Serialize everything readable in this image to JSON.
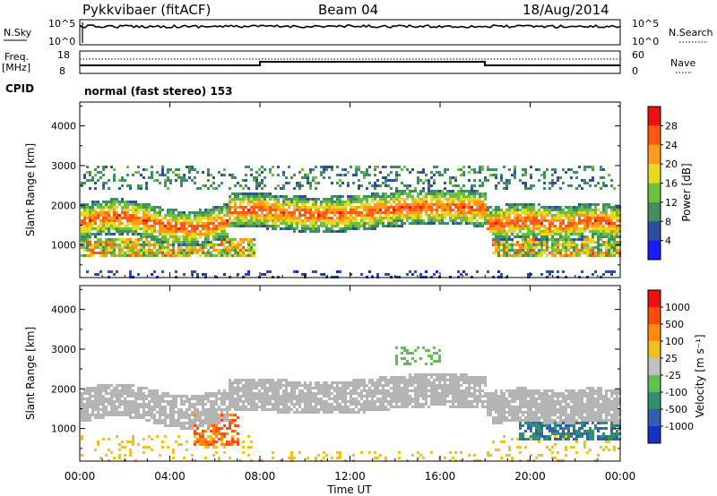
{
  "header": {
    "station": "Pykkvibaer (fitACF)",
    "beam": "Beam 04",
    "date": "18/Aug/2014"
  },
  "noise_panel": {
    "left_label": "N.Sky",
    "left_ticks": [
      "10^5",
      "10^0"
    ],
    "right_ticks": [
      "10^5",
      "10^0"
    ],
    "right_label": "N.Search",
    "right_label_style": "dotted"
  },
  "freq_panel": {
    "left_label_1": "Freq.",
    "left_label_2": "[MHz]",
    "left_ticks": [
      "18",
      "8"
    ],
    "right_ticks": [
      "60",
      "0"
    ],
    "right_label": "Nave",
    "right_label_style": "dotted"
  },
  "cpid": {
    "label": "CPID",
    "value": "normal (fast stereo) 153"
  },
  "chart_data": [
    {
      "type": "heatmap",
      "title": "",
      "ylabel": "Slant Range [km]",
      "xlabel": "",
      "x_ticks": [
        "00:00",
        "04:00",
        "08:00",
        "12:00",
        "16:00",
        "20:00",
        "00:00"
      ],
      "x_range_hours": [
        0,
        24
      ],
      "y_ticks": [
        1000,
        2000,
        3000,
        4000
      ],
      "ylim": [
        180,
        4600
      ],
      "colorbar": {
        "label": "Power [dB]",
        "ticks": [
          4,
          8,
          12,
          16,
          20,
          24,
          28
        ],
        "colors": [
          "#1a1aff",
          "#2e4f9e",
          "#3f8f5f",
          "#6fbf3f",
          "#e8d820",
          "#ff9a1a",
          "#ff5a10",
          "#ee1111"
        ],
        "range": [
          0,
          30
        ]
      }
    },
    {
      "type": "heatmap",
      "title": "",
      "ylabel": "Slant Range [km]",
      "xlabel": "Time UT",
      "x_ticks": [
        "00:00",
        "04:00",
        "08:00",
        "12:00",
        "16:00",
        "20:00",
        "00:00"
      ],
      "x_range_hours": [
        0,
        24
      ],
      "y_ticks": [
        1000,
        2000,
        3000,
        4000
      ],
      "ylim": [
        180,
        4600
      ],
      "colorbar": {
        "label": "Velocity [m s⁻¹]",
        "ticks": [
          "1000",
          "500",
          "100",
          "25",
          "-25",
          "-100",
          "-500",
          "-1000"
        ],
        "colors": [
          "#1630c8",
          "#3060b0",
          "#2f8f6f",
          "#5fc04f",
          "#c0c0c0",
          "#f0c020",
          "#ff8a10",
          "#ff4a10",
          "#ee1111"
        ],
        "ground_scatter_color": "#b4b4b4"
      }
    }
  ]
}
